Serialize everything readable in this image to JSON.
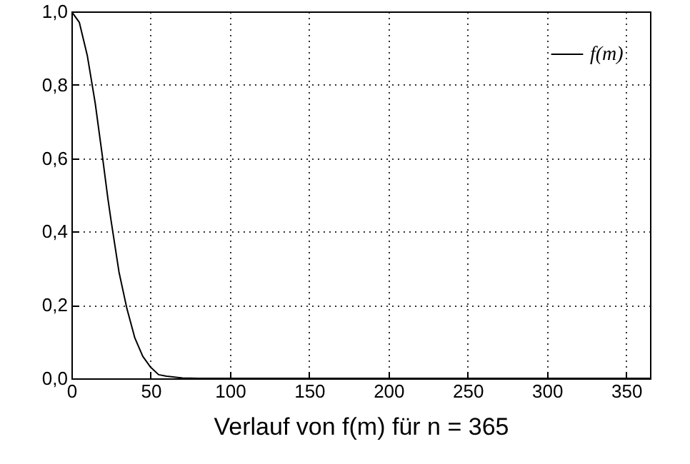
{
  "chart_data": {
    "type": "line",
    "xlabel": "Verlauf von f(m) für n = 365",
    "x": [
      0,
      5,
      10,
      15,
      20,
      23,
      25,
      30,
      35,
      40,
      45,
      50,
      55,
      60,
      70,
      80,
      100,
      200,
      365
    ],
    "series": [
      {
        "name": "f(m)",
        "color": "#000000",
        "values": [
          1,
          0.97,
          0.88,
          0.75,
          0.59,
          0.49,
          0.43,
          0.29,
          0.19,
          0.11,
          0.06,
          0.03,
          0.01,
          0.006,
          0.001,
          0,
          0,
          0,
          0
        ]
      }
    ],
    "xlim": [
      0,
      365
    ],
    "xticks": [
      0,
      50,
      100,
      150,
      200,
      250,
      300,
      350
    ],
    "ylim": [
      0,
      1
    ],
    "yticks": [
      {
        "value": 0,
        "label": "0,0"
      },
      {
        "value": 0.2,
        "label": "0,2"
      },
      {
        "value": 0.4,
        "label": "0,4"
      },
      {
        "value": 0.6,
        "label": "0,6"
      },
      {
        "value": 0.8,
        "label": "0,8"
      },
      {
        "value": 1,
        "label": "1,0"
      }
    ],
    "grid": true,
    "legend": "top right",
    "marker": "none",
    "line_style": "solid"
  }
}
